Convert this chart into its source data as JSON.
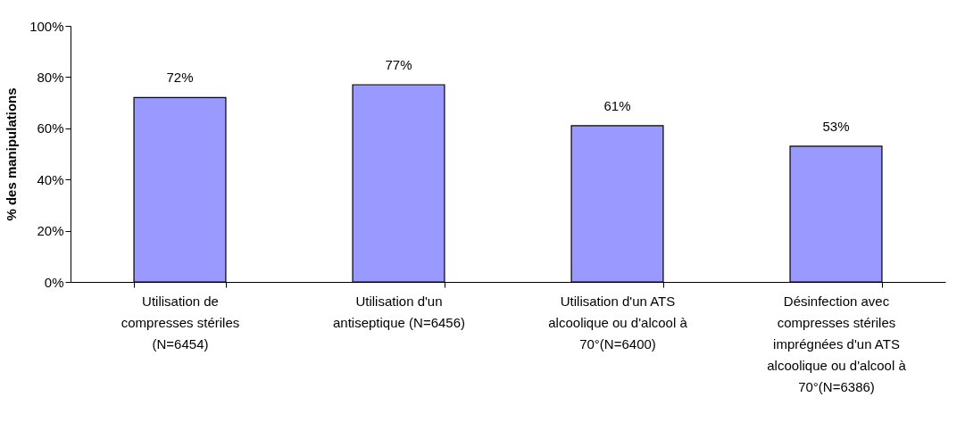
{
  "chart_data": {
    "type": "bar",
    "ylabel": "% des manipulations",
    "categories": [
      "Utilisation de compresses stériles (N=6454)",
      "Utilisation d'un antiseptique (N=6456)",
      "Utilisation d'un ATS alcoolique ou d'alcool à 70°(N=6400)",
      "Désinfection avec compresses stériles imprégnées d'un ATS alcoolique ou d'alcool à 70°(N=6386)"
    ],
    "values": [
      72,
      77,
      61,
      53
    ],
    "value_labels": [
      "72%",
      "77%",
      "61%",
      "53%"
    ],
    "color": "#9999ff",
    "ylim": [
      0,
      100
    ],
    "yticks": [
      {
        "value": 0,
        "label": "0%"
      },
      {
        "value": 20,
        "label": "20%"
      },
      {
        "value": 40,
        "label": "40%"
      },
      {
        "value": 60,
        "label": "60%"
      },
      {
        "value": 80,
        "label": "80%"
      },
      {
        "value": 100,
        "label": "100%"
      }
    ],
    "grid": false
  }
}
